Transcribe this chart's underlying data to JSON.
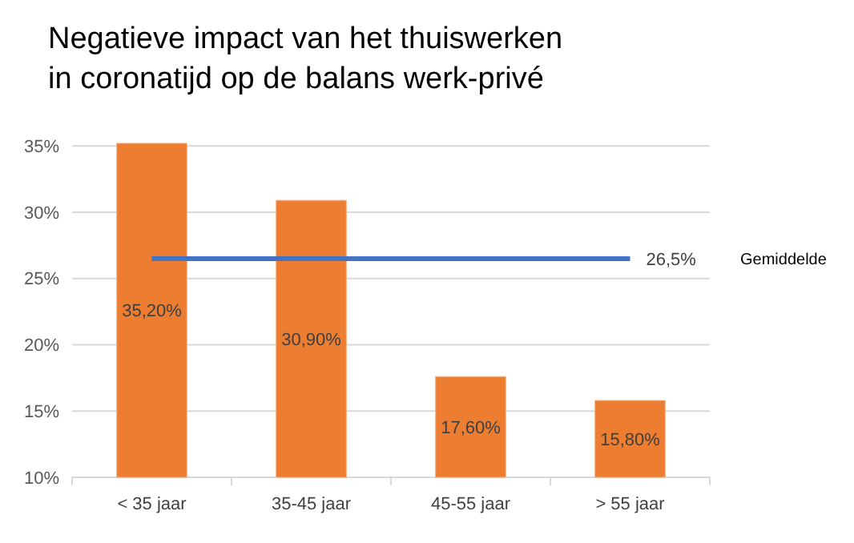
{
  "chart_data": {
    "type": "bar",
    "title": "Negatieve impact van het thuiswerken\nin coronatijd op de balans werk-privé",
    "categories": [
      "< 35 jaar",
      "35-45 jaar",
      "45-55 jaar",
      "> 55 jaar"
    ],
    "values": [
      35.2,
      30.9,
      17.6,
      15.8
    ],
    "color": "#ed7d31",
    "value_labels": [
      "35,20%",
      "30,90%",
      "17,60%",
      "15,80%"
    ],
    "ylim": [
      10,
      35.5
    ],
    "yticks": [
      {
        "value": 10,
        "label": "10%"
      },
      {
        "value": 15,
        "label": "15%"
      },
      {
        "value": 20,
        "label": "20%"
      },
      {
        "value": 25,
        "label": "25%"
      },
      {
        "value": 30,
        "label": "30%"
      },
      {
        "value": 35,
        "label": "35%"
      }
    ],
    "grid": "y",
    "ref_lines": [
      {
        "axis": "y",
        "value": 26.5,
        "label": "26,5%",
        "color": "#4472c4"
      }
    ],
    "annotations": [
      "Gemiddelde"
    ]
  }
}
